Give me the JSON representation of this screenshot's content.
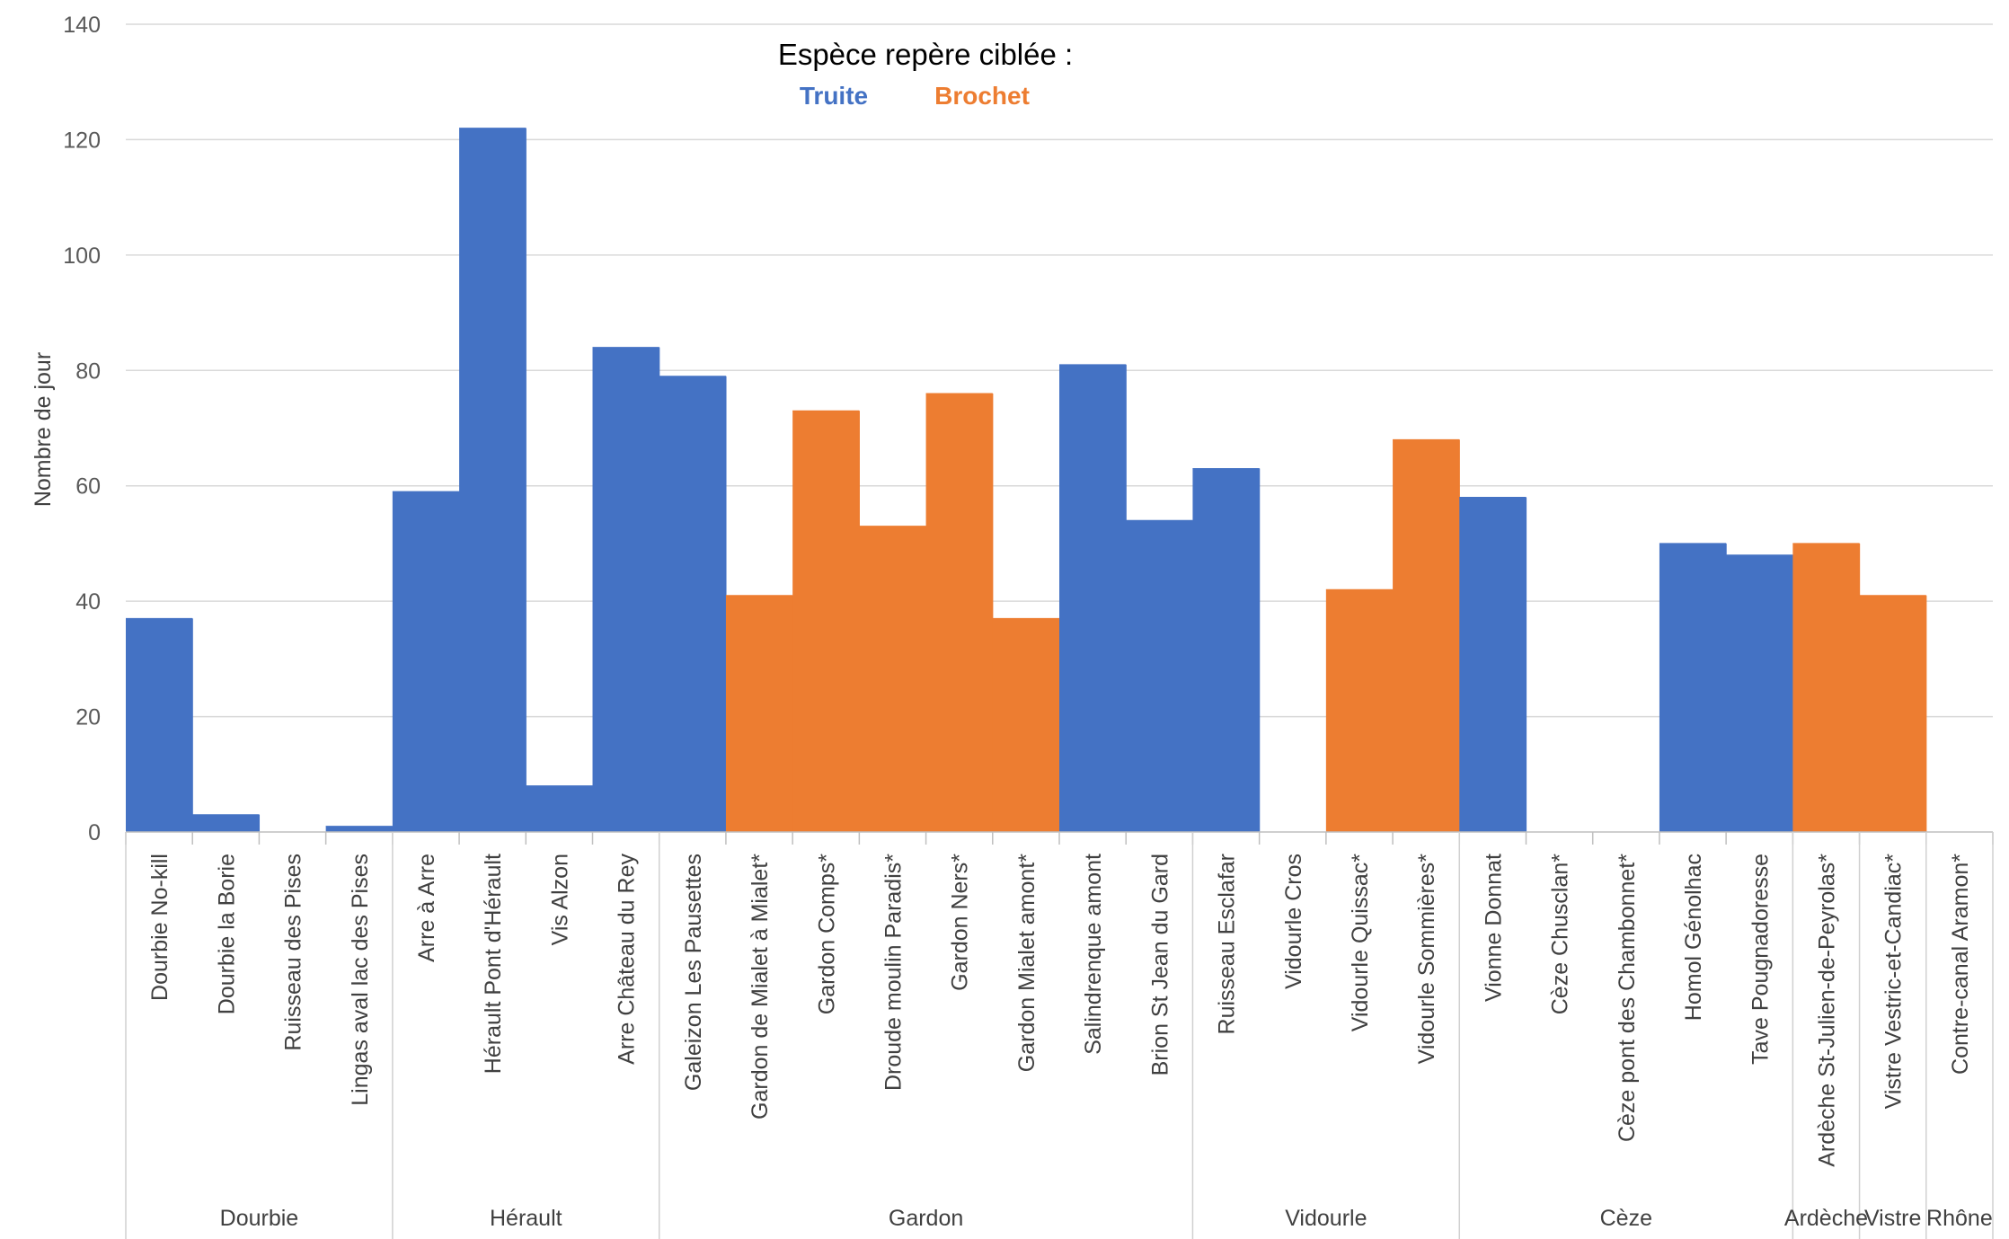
{
  "chart_data": {
    "type": "bar",
    "ylabel": "Nombre de jour",
    "xlabel": "",
    "ylim": [
      0,
      140
    ],
    "yticks": [
      0,
      20,
      40,
      60,
      80,
      100,
      120,
      140
    ],
    "grid": true,
    "legend": {
      "title": "Espèce repère ciblée :",
      "placement": "top-center",
      "items": [
        {
          "name": "Truite",
          "color": "#4472C4"
        },
        {
          "name": "Brochet",
          "color": "#ED7D31"
        }
      ]
    },
    "colors": {
      "Truite": "#4472C4",
      "Brochet": "#ED7D31"
    },
    "categories": [
      "Dourbie No-kill",
      "Dourbie la Borie",
      "Ruisseau des Pises",
      "Lingas aval lac des Pises",
      "Arre à Arre",
      "Hérault Pont d'Hérault",
      "Vis Alzon",
      "Arre Château du Rey",
      "Galeizon Les Pausettes",
      "Gardon de Mialet à Mialet*",
      "Gardon Comps*",
      "Droude moulin Paradis*",
      "Gardon Ners*",
      "Gardon Mialet amont*",
      "Salindrenque amont",
      "Brion St Jean du Gard",
      "Ruisseau Esclafar",
      "Vidourle Cros",
      "Vidourle Quissac*",
      "Vidourle Sommières*",
      "Vionne Donnat",
      "Cèze Chusclan*",
      "Cèze pont des Chambonnet*",
      "Homol Génolhac",
      "Tave Pougnadoresse",
      "Ardèche St-Julien-de-Peyrolas*",
      "Vistre Vestric-et-Candiac*",
      "Contre-canal Aramon*"
    ],
    "values": [
      37,
      3,
      0,
      1,
      59,
      122,
      8,
      84,
      79,
      41,
      73,
      53,
      76,
      37,
      81,
      54,
      63,
      0,
      42,
      68,
      58,
      0,
      0,
      50,
      48,
      50,
      41,
      0
    ],
    "species": [
      "Truite",
      "Truite",
      "Truite",
      "Truite",
      "Truite",
      "Truite",
      "Truite",
      "Truite",
      "Truite",
      "Brochet",
      "Brochet",
      "Brochet",
      "Brochet",
      "Brochet",
      "Truite",
      "Truite",
      "Truite",
      "Truite",
      "Brochet",
      "Brochet",
      "Truite",
      "Brochet",
      "Brochet",
      "Truite",
      "Truite",
      "Brochet",
      "Brochet",
      "Brochet"
    ],
    "groups": [
      {
        "name": "Dourbie",
        "count": 4
      },
      {
        "name": "Hérault",
        "count": 4
      },
      {
        "name": "Gardon",
        "count": 8
      },
      {
        "name": "Vidourle",
        "count": 4
      },
      {
        "name": "Cèze",
        "count": 5
      },
      {
        "name": "Ardèche",
        "count": 1
      },
      {
        "name": "Vistre",
        "count": 1
      },
      {
        "name": "Rhône",
        "count": 1
      }
    ]
  }
}
